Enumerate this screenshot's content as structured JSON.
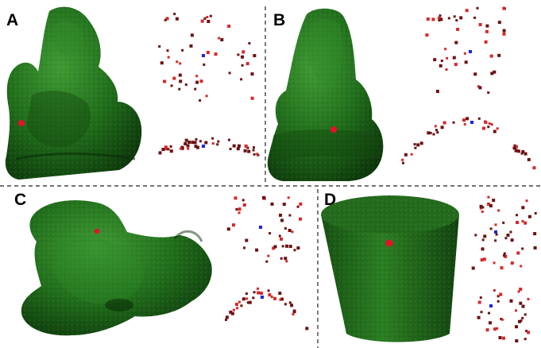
{
  "panels": [
    {
      "label": "A",
      "object": "seated-figure-statue"
    },
    {
      "label": "B",
      "object": "seated-figure-statue-back"
    },
    {
      "label": "C",
      "object": "dragon-statue"
    },
    {
      "label": "D",
      "object": "cylinder"
    }
  ],
  "colors": {
    "mesh": "#1f6b1a",
    "mesh_dark": "#0f3d0d",
    "mesh_light": "#3f9a33",
    "selected_vertex": "#e8102a",
    "query_point": "#1a23e0",
    "point_dark": "#6b1212",
    "point_light": "#d62828",
    "divider": "#222222"
  }
}
